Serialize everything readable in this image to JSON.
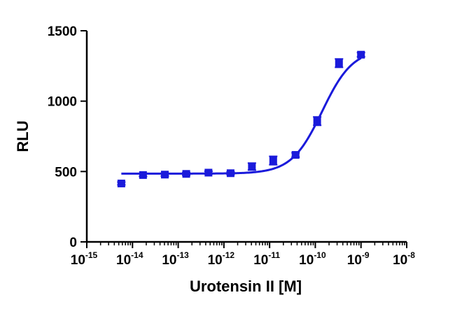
{
  "chart_data": {
    "type": "scatter",
    "xlabel": "Urotensin II [M]",
    "ylabel": "RLU",
    "x_scale": "log",
    "xlim": [
      1e-15,
      1e-08
    ],
    "ylim": [
      0,
      1500
    ],
    "x_ticks": [
      {
        "value": 1e-15,
        "base": "10",
        "exp": "-15"
      },
      {
        "value": 1e-14,
        "base": "10",
        "exp": "-14"
      },
      {
        "value": 1e-13,
        "base": "10",
        "exp": "-13"
      },
      {
        "value": 1e-12,
        "base": "10",
        "exp": "-12"
      },
      {
        "value": 1e-11,
        "base": "10",
        "exp": "-11"
      },
      {
        "value": 1e-10,
        "base": "10",
        "exp": "-10"
      },
      {
        "value": 1e-09,
        "base": "10",
        "exp": "-9"
      },
      {
        "value": 1e-08,
        "base": "10",
        "exp": "-8"
      }
    ],
    "y_ticks": [
      "0",
      "500",
      "1000",
      "1500"
    ],
    "grid": false,
    "color": "#1a1adb",
    "points": [
      {
        "x": 5.7e-15,
        "y": 415,
        "err": 10
      },
      {
        "x": 1.7e-14,
        "y": 475,
        "err": 10
      },
      {
        "x": 5.1e-14,
        "y": 478,
        "err": 10
      },
      {
        "x": 1.5e-13,
        "y": 483,
        "err": 10
      },
      {
        "x": 4.6e-13,
        "y": 492,
        "err": 10
      },
      {
        "x": 1.4e-12,
        "y": 488,
        "err": 10
      },
      {
        "x": 4.1e-12,
        "y": 535,
        "err": 25
      },
      {
        "x": 1.2e-11,
        "y": 578,
        "err": 30
      },
      {
        "x": 3.7e-11,
        "y": 618,
        "err": 15
      },
      {
        "x": 1.1e-10,
        "y": 858,
        "err": 30
      },
      {
        "x": 3.3e-10,
        "y": 1270,
        "err": 30
      },
      {
        "x": 1e-09,
        "y": 1330,
        "err": 15
      }
    ],
    "fit": {
      "model": "four-parameter logistic",
      "bottom": 485,
      "top": 1370,
      "log_ec50": -9.85,
      "hill": 1.3
    }
  }
}
